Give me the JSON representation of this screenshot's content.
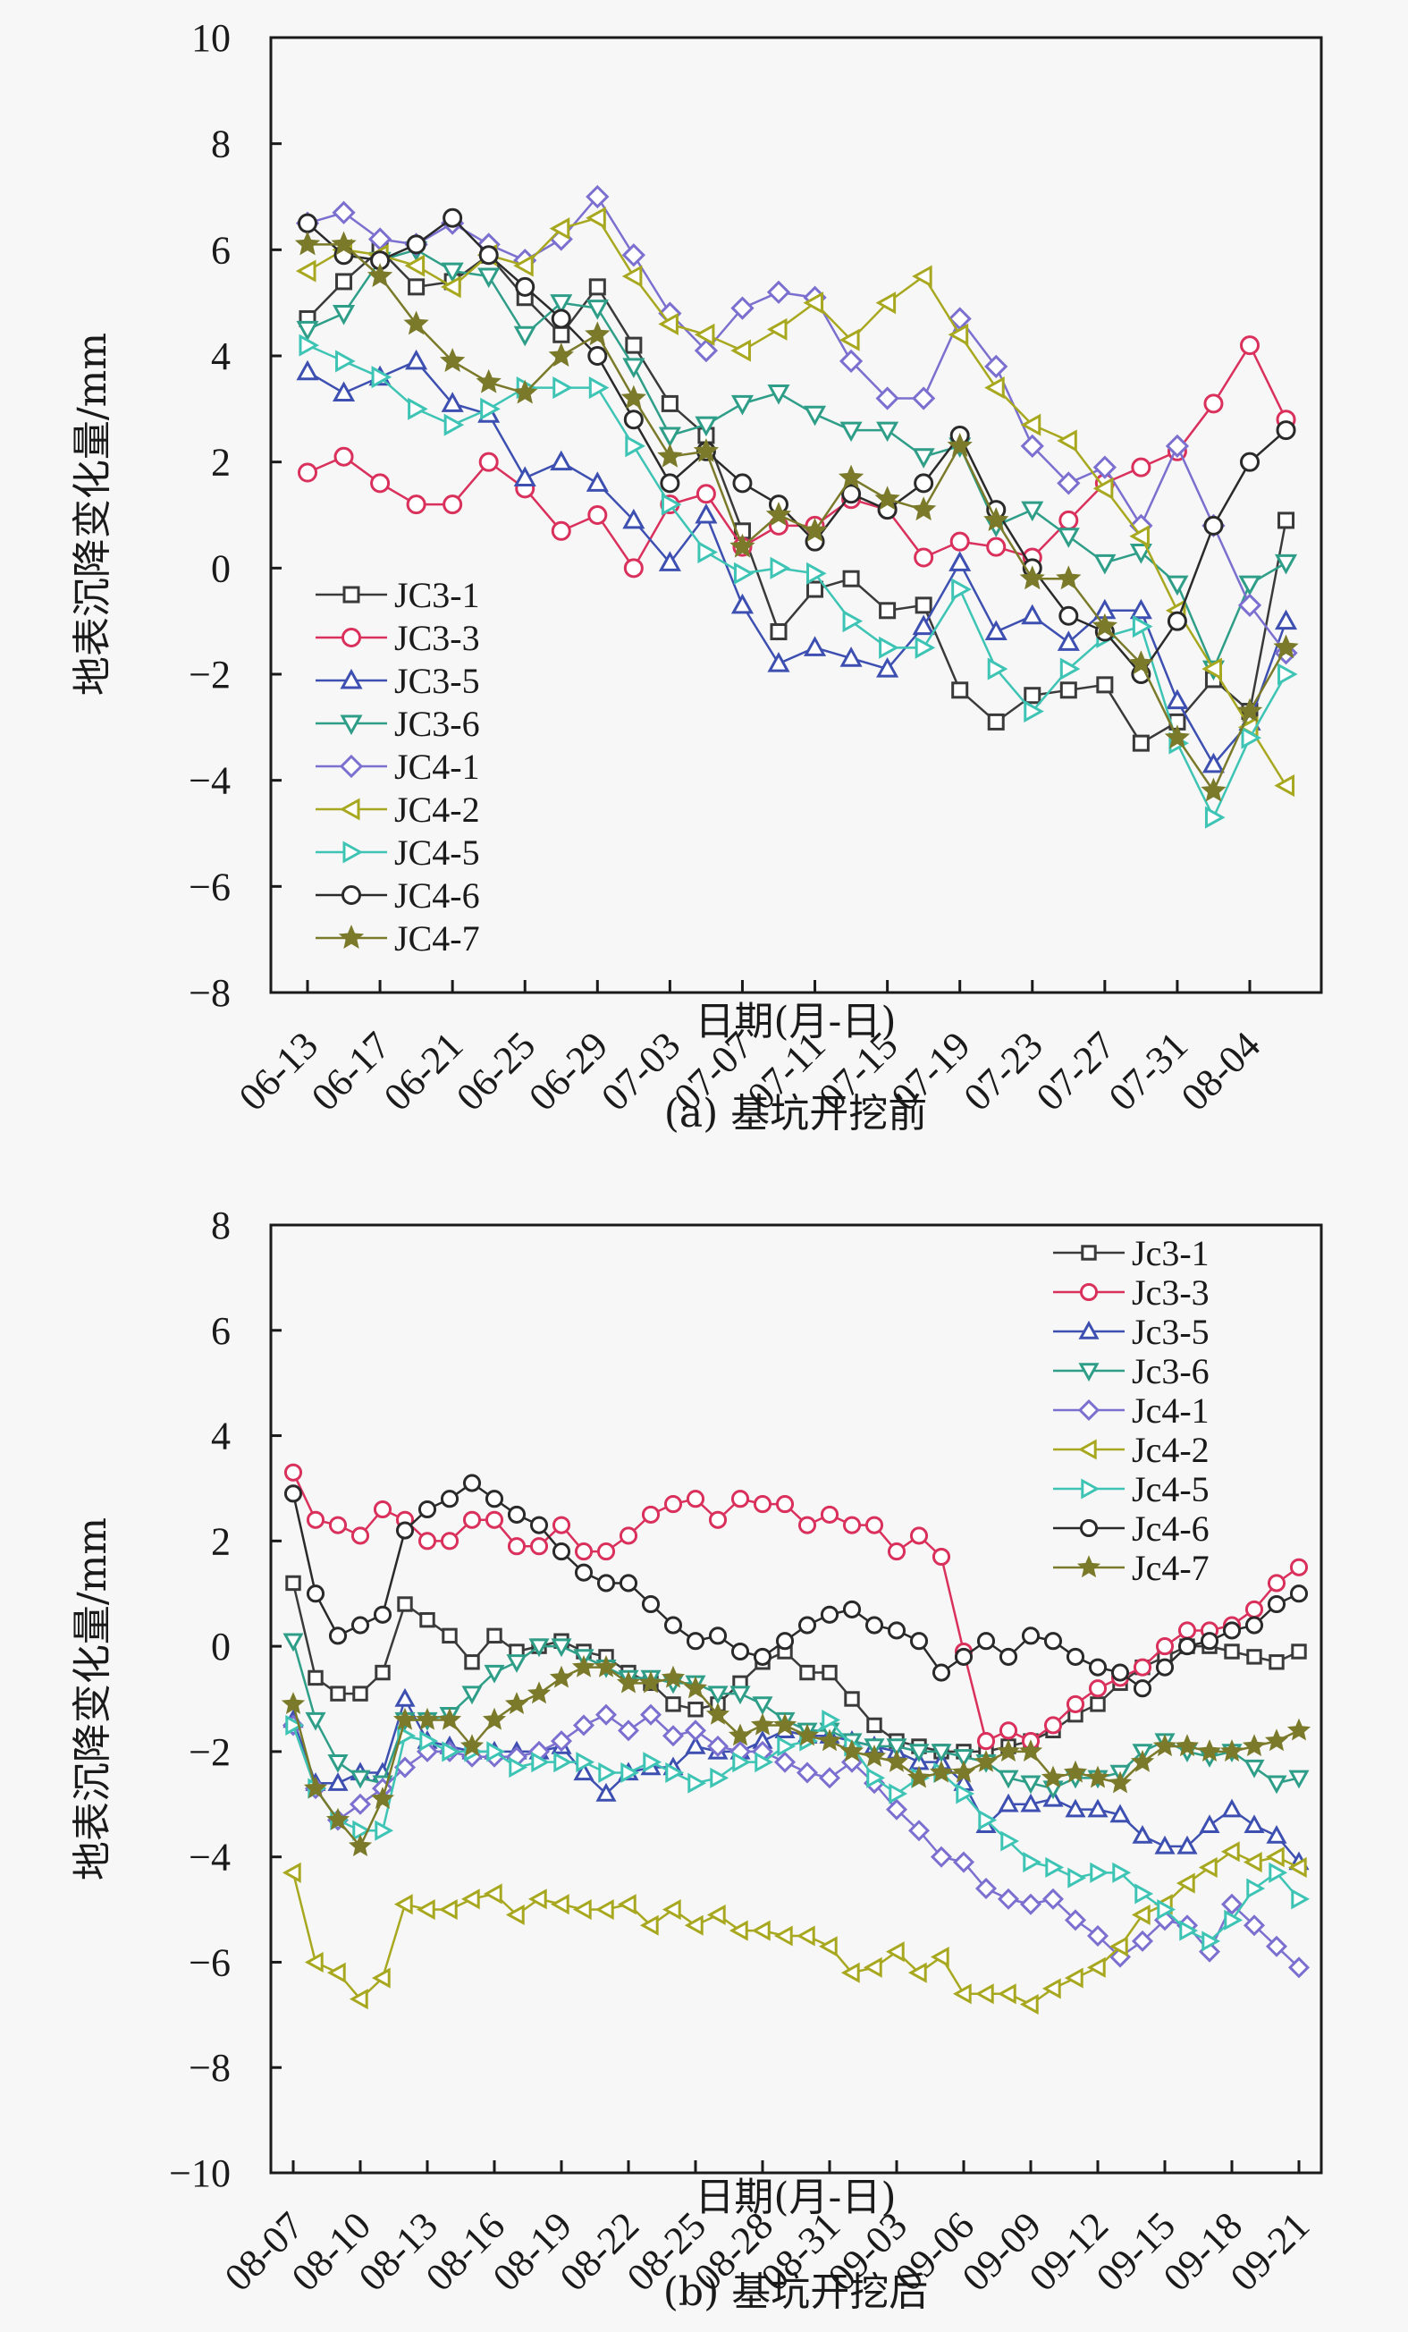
{
  "chart_data": [
    {
      "id": "a",
      "type": "line",
      "caption": "(a) 基坑开挖前",
      "xlabel": "日期(月-日)",
      "ylabel": "地表沉降变化量/mm",
      "ylim": [
        -8,
        10
      ],
      "yticks": [
        -8,
        -6,
        -4,
        -2,
        0,
        2,
        4,
        6,
        8,
        10
      ],
      "x_start": "06-13",
      "x_step_days": 2,
      "xtick_labels": [
        "06-13",
        "06-17",
        "06-21",
        "06-25",
        "06-29",
        "07-03",
        "07-07",
        "07-11",
        "07-15",
        "07-19",
        "07-23",
        "07-27",
        "07-31",
        "08-04"
      ],
      "legend_position": "lower-left",
      "grid": false,
      "series": [
        {
          "name": "JC3-1",
          "marker": "square",
          "color": "#3a3a3a",
          "values": [
            4.7,
            5.4,
            6.0,
            5.3,
            5.4,
            5.9,
            5.1,
            4.4,
            5.3,
            4.2,
            3.1,
            2.5,
            0.7,
            -1.2,
            -0.4,
            -0.2,
            -0.8,
            -0.7,
            -2.3,
            -2.9,
            -2.4,
            -2.3,
            -2.2,
            -3.3,
            -2.9,
            -2.1,
            -2.7,
            0.9
          ]
        },
        {
          "name": "JC3-3",
          "marker": "circle",
          "color": "#d9305c",
          "values": [
            1.8,
            2.1,
            1.6,
            1.2,
            1.2,
            2.0,
            1.5,
            0.7,
            1.0,
            0.0,
            1.2,
            1.4,
            0.4,
            0.8,
            0.8,
            1.3,
            1.1,
            0.2,
            0.5,
            0.4,
            0.2,
            0.9,
            1.6,
            1.9,
            2.2,
            3.1,
            4.2,
            2.8
          ]
        },
        {
          "name": "JC3-5",
          "marker": "triangle-up",
          "color": "#3d4fb0",
          "values": [
            3.7,
            3.3,
            3.6,
            3.9,
            3.1,
            2.9,
            1.7,
            2.0,
            1.6,
            0.9,
            0.1,
            1.0,
            -0.7,
            -1.8,
            -1.5,
            -1.7,
            -1.9,
            -1.1,
            0.1,
            -1.2,
            -0.9,
            -1.4,
            -0.8,
            -0.8,
            -2.5,
            -3.7,
            -2.9,
            -1.0
          ]
        },
        {
          "name": "JC3-6",
          "marker": "triangle-down",
          "color": "#2f9e88",
          "values": [
            4.5,
            4.8,
            5.8,
            6.0,
            5.6,
            5.5,
            4.4,
            5.0,
            4.9,
            3.8,
            2.5,
            2.7,
            3.1,
            3.3,
            2.9,
            2.6,
            2.6,
            2.1,
            2.3,
            0.8,
            1.1,
            0.6,
            0.1,
            0.3,
            -0.3,
            -1.9,
            -0.3,
            0.1
          ]
        },
        {
          "name": "JC4-1",
          "marker": "diamond",
          "color": "#7b6fcf",
          "values": [
            6.5,
            6.7,
            6.2,
            6.1,
            6.5,
            6.1,
            5.8,
            6.2,
            7.0,
            5.9,
            4.8,
            4.1,
            4.9,
            5.2,
            5.1,
            3.9,
            3.2,
            3.2,
            4.7,
            3.8,
            2.3,
            1.6,
            1.9,
            0.8,
            2.3,
            0.8,
            -0.7,
            -1.6
          ]
        },
        {
          "name": "JC4-2",
          "marker": "triangle-left",
          "color": "#a8a820",
          "values": [
            5.6,
            6.0,
            5.9,
            5.7,
            5.3,
            5.9,
            5.7,
            6.4,
            6.6,
            5.5,
            4.6,
            4.4,
            4.1,
            4.5,
            5.0,
            4.3,
            5.0,
            5.5,
            4.4,
            3.4,
            2.7,
            2.4,
            1.5,
            0.6,
            -0.8,
            -1.9,
            -3.0,
            -4.1
          ]
        },
        {
          "name": "JC4-5",
          "marker": "triangle-right",
          "color": "#3ec4b4",
          "values": [
            4.2,
            3.9,
            3.6,
            3.0,
            2.7,
            3.0,
            3.4,
            3.4,
            3.4,
            2.3,
            1.2,
            0.3,
            -0.1,
            0.0,
            -0.1,
            -1.0,
            -1.5,
            -1.5,
            -0.4,
            -1.9,
            -2.7,
            -1.9,
            -1.3,
            -1.1,
            -3.3,
            -4.7,
            -3.2,
            -2.0
          ]
        },
        {
          "name": "JC4-6",
          "marker": "hexagon",
          "color": "#2a2a2a",
          "values": [
            6.5,
            5.9,
            5.8,
            6.1,
            6.6,
            5.9,
            5.3,
            4.7,
            4.0,
            2.8,
            1.6,
            2.2,
            1.6,
            1.2,
            0.5,
            1.4,
            1.1,
            1.6,
            2.5,
            1.1,
            0.0,
            -0.9,
            -1.2,
            -2.0,
            -1.0,
            0.8,
            2.0,
            2.6
          ]
        },
        {
          "name": "JC4-7",
          "marker": "star",
          "color": "#7a7a2a",
          "values": [
            6.1,
            6.1,
            5.5,
            4.6,
            3.9,
            3.5,
            3.3,
            4.0,
            4.4,
            3.2,
            2.1,
            2.2,
            0.4,
            1.0,
            0.7,
            1.7,
            1.3,
            1.1,
            2.3,
            0.9,
            -0.2,
            -0.2,
            -1.1,
            -1.8,
            -3.2,
            -4.2,
            -2.7,
            -1.5
          ]
        }
      ]
    },
    {
      "id": "b",
      "type": "line",
      "caption": "(b) 基坑开挖后",
      "xlabel": "日期(月-日)",
      "ylabel": "地表沉降变化量/mm",
      "ylim": [
        -10,
        8
      ],
      "yticks": [
        -10,
        -8,
        -6,
        -4,
        -2,
        0,
        2,
        4,
        6,
        8
      ],
      "x_start": "08-07",
      "x_step_days": 1,
      "xtick_labels": [
        "08-07",
        "08-10",
        "08-13",
        "08-16",
        "08-19",
        "08-22",
        "08-25",
        "08-28",
        "08-31",
        "09-03",
        "09-06",
        "09-09",
        "09-12",
        "09-15",
        "09-18",
        "09-21"
      ],
      "legend_position": "top-right",
      "grid": false,
      "series": [
        {
          "name": "Jc3-1",
          "marker": "square",
          "color": "#3a3a3a",
          "values": [
            1.2,
            -0.6,
            -0.9,
            -0.9,
            -0.5,
            0.8,
            0.5,
            0.2,
            -0.3,
            0.2,
            -0.1,
            0.0,
            0.1,
            -0.1,
            -0.2,
            -0.5,
            -0.7,
            -1.1,
            -1.2,
            -1.1,
            -0.7,
            -0.3,
            -0.1,
            -0.5,
            -0.5,
            -1.0,
            -1.5,
            -1.8,
            -1.9,
            -2.0,
            -2.0,
            -2.0,
            -1.9,
            -1.8,
            -1.6,
            -1.3,
            -1.1,
            -0.7,
            -0.4,
            -0.2,
            0.0,
            0.0,
            -0.1,
            -0.2,
            -0.3,
            -0.1
          ]
        },
        {
          "name": "Jc3-3",
          "marker": "circle",
          "color": "#d9305c",
          "values": [
            3.3,
            2.4,
            2.3,
            2.1,
            2.6,
            2.4,
            2.0,
            2.0,
            2.4,
            2.4,
            1.9,
            1.9,
            2.3,
            1.8,
            1.8,
            2.1,
            2.5,
            2.7,
            2.8,
            2.4,
            2.8,
            2.7,
            2.7,
            2.3,
            2.5,
            2.3,
            2.3,
            1.8,
            2.1,
            1.7,
            -0.1,
            -1.8,
            -1.6,
            -1.8,
            -1.5,
            -1.1,
            -0.8,
            -0.6,
            -0.4,
            0.0,
            0.3,
            0.3,
            0.4,
            0.7,
            1.2,
            1.5
          ]
        },
        {
          "name": "Jc3-5",
          "marker": "triangle-up",
          "color": "#3d4fb0",
          "values": [
            -1.4,
            -2.6,
            -2.6,
            -2.4,
            -2.4,
            -1.0,
            -1.8,
            -1.9,
            -2.0,
            -2.0,
            -2.0,
            -2.0,
            -1.9,
            -2.4,
            -2.8,
            -2.4,
            -2.3,
            -2.3,
            -1.9,
            -2.0,
            -2.0,
            -1.8,
            -1.6,
            -1.7,
            -1.7,
            -1.8,
            -1.9,
            -2.0,
            -2.2,
            -2.2,
            -2.6,
            -3.4,
            -3.0,
            -3.0,
            -2.9,
            -3.1,
            -3.1,
            -3.2,
            -3.6,
            -3.8,
            -3.8,
            -3.4,
            -3.1,
            -3.4,
            -3.6,
            -4.1
          ]
        },
        {
          "name": "Jc3-6",
          "marker": "triangle-down",
          "color": "#2f9e88",
          "values": [
            0.1,
            -1.4,
            -2.2,
            -2.5,
            -2.6,
            -1.4,
            -1.4,
            -1.3,
            -0.9,
            -0.5,
            -0.3,
            0.0,
            0.0,
            -0.2,
            -0.4,
            -0.6,
            -0.6,
            -0.7,
            -0.7,
            -0.9,
            -0.9,
            -1.1,
            -1.4,
            -1.6,
            -1.6,
            -1.8,
            -1.9,
            -1.9,
            -2.0,
            -2.0,
            -2.1,
            -2.2,
            -2.5,
            -2.6,
            -2.7,
            -2.5,
            -2.5,
            -2.4,
            -2.0,
            -1.8,
            -2.0,
            -2.1,
            -2.0,
            -2.3,
            -2.6,
            -2.5
          ]
        },
        {
          "name": "Jc4-1",
          "marker": "diamond",
          "color": "#7b6fcf",
          "values": [
            -1.5,
            -2.7,
            -3.3,
            -3.0,
            -2.7,
            -2.3,
            -2.0,
            -2.0,
            -2.1,
            -2.1,
            -2.1,
            -2.0,
            -1.8,
            -1.5,
            -1.3,
            -1.6,
            -1.3,
            -1.7,
            -1.6,
            -1.9,
            -2.0,
            -2.0,
            -2.2,
            -2.4,
            -2.5,
            -2.2,
            -2.6,
            -3.1,
            -3.5,
            -4.0,
            -4.1,
            -4.6,
            -4.8,
            -4.9,
            -4.8,
            -5.2,
            -5.5,
            -5.9,
            -5.6,
            -5.2,
            -5.3,
            -5.8,
            -4.9,
            -5.3,
            -5.7,
            -6.1
          ]
        },
        {
          "name": "Jc4-2",
          "marker": "triangle-left",
          "color": "#a8a820",
          "values": [
            -4.3,
            -6.0,
            -6.2,
            -6.7,
            -6.3,
            -4.9,
            -5.0,
            -5.0,
            -4.8,
            -4.7,
            -5.1,
            -4.8,
            -4.9,
            -5.0,
            -5.0,
            -4.9,
            -5.3,
            -5.0,
            -5.3,
            -5.1,
            -5.4,
            -5.4,
            -5.5,
            -5.5,
            -5.7,
            -6.2,
            -6.1,
            -5.8,
            -6.2,
            -5.9,
            -6.6,
            -6.6,
            -6.6,
            -6.8,
            -6.5,
            -6.3,
            -6.1,
            -5.7,
            -5.1,
            -4.9,
            -4.5,
            -4.2,
            -3.9,
            -4.1,
            -4.0,
            -4.2
          ]
        },
        {
          "name": "Jc4-5",
          "marker": "triangle-right",
          "color": "#3ec4b4",
          "values": [
            -1.5,
            -2.7,
            -3.3,
            -3.5,
            -3.5,
            -1.7,
            -1.8,
            -2.0,
            -2.0,
            -2.0,
            -2.3,
            -2.2,
            -2.2,
            -2.2,
            -2.4,
            -2.4,
            -2.2,
            -2.4,
            -2.6,
            -2.5,
            -2.2,
            -2.2,
            -1.9,
            -1.8,
            -1.4,
            -1.9,
            -2.5,
            -2.8,
            -2.5,
            -2.4,
            -2.8,
            -3.3,
            -3.7,
            -4.1,
            -4.2,
            -4.4,
            -4.3,
            -4.3,
            -4.7,
            -5.0,
            -5.4,
            -5.6,
            -5.2,
            -4.6,
            -4.3,
            -4.8
          ]
        },
        {
          "name": "Jc4-6",
          "marker": "hexagon",
          "color": "#2a2a2a",
          "values": [
            2.9,
            1.0,
            0.2,
            0.4,
            0.6,
            2.2,
            2.6,
            2.8,
            3.1,
            2.8,
            2.5,
            2.3,
            1.8,
            1.4,
            1.2,
            1.2,
            0.8,
            0.4,
            0.1,
            0.2,
            -0.1,
            -0.2,
            0.1,
            0.4,
            0.6,
            0.7,
            0.4,
            0.3,
            0.1,
            -0.5,
            -0.2,
            0.1,
            -0.2,
            0.2,
            0.1,
            -0.2,
            -0.4,
            -0.5,
            -0.8,
            -0.4,
            0.0,
            0.1,
            0.3,
            0.4,
            0.8,
            1.0
          ]
        },
        {
          "name": "Jc4-7",
          "marker": "star",
          "color": "#7a7a2a",
          "values": [
            -1.1,
            -2.7,
            -3.3,
            -3.8,
            -2.9,
            -1.4,
            -1.4,
            -1.4,
            -1.9,
            -1.4,
            -1.1,
            -0.9,
            -0.6,
            -0.4,
            -0.4,
            -0.7,
            -0.7,
            -0.6,
            -0.8,
            -1.3,
            -1.7,
            -1.5,
            -1.5,
            -1.7,
            -1.8,
            -2.0,
            -2.1,
            -2.2,
            -2.5,
            -2.4,
            -2.4,
            -2.2,
            -2.0,
            -2.0,
            -2.5,
            -2.4,
            -2.5,
            -2.6,
            -2.2,
            -1.9,
            -1.9,
            -2.0,
            -2.0,
            -1.9,
            -1.8,
            -1.6
          ]
        }
      ]
    }
  ]
}
